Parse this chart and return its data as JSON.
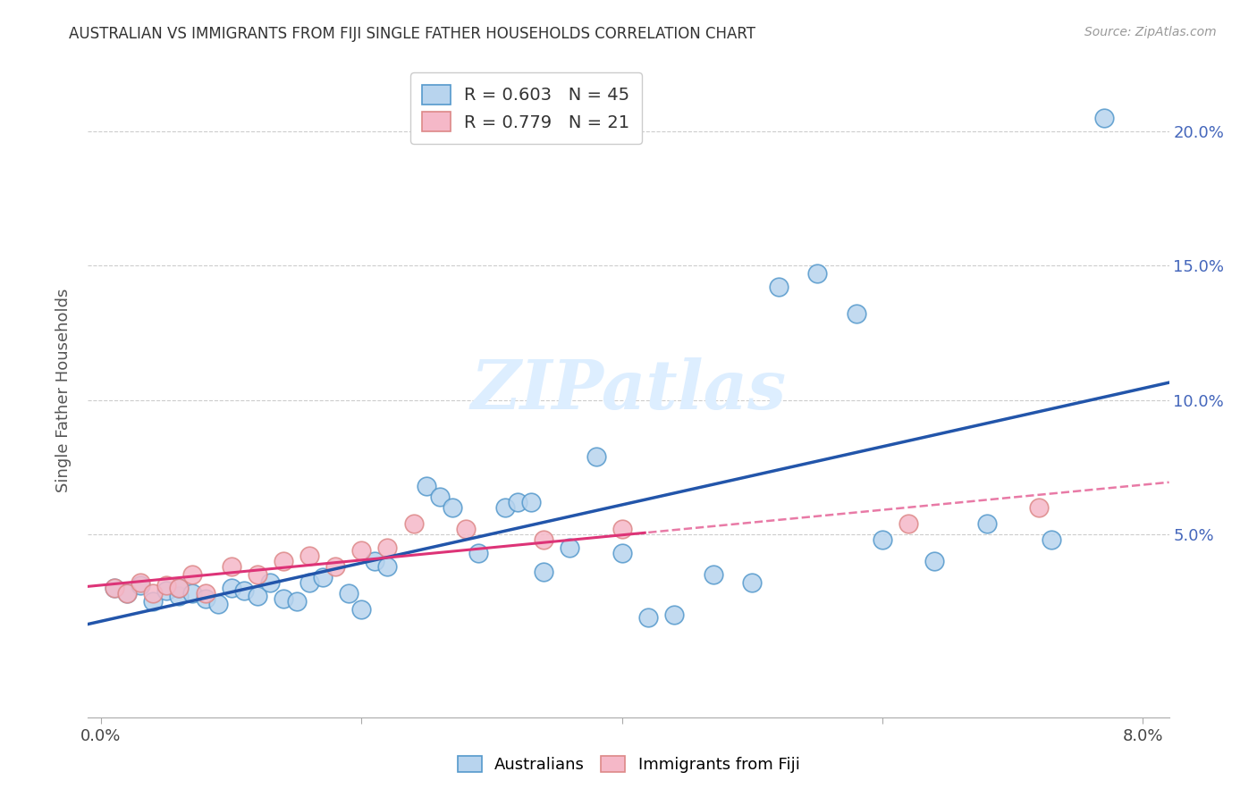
{
  "title": "AUSTRALIAN VS IMMIGRANTS FROM FIJI SINGLE FATHER HOUSEHOLDS CORRELATION CHART",
  "source": "Source: ZipAtlas.com",
  "ylabel": "Single Father Households",
  "legend_label_1": "Australians",
  "legend_label_2": "Immigrants from Fiji",
  "r1": "0.603",
  "n1": "45",
  "r2": "0.779",
  "n2": "21",
  "xlim": [
    -0.001,
    0.082
  ],
  "ylim": [
    -0.018,
    0.225
  ],
  "color_blue_fill": "#b8d4ee",
  "color_blue_edge": "#5599cc",
  "color_pink_fill": "#f5b8c8",
  "color_pink_edge": "#dd8888",
  "color_blue_line": "#2255aa",
  "color_pink_line": "#dd3377",
  "color_grid": "#cccccc",
  "watermark_color": "#ddeeff",
  "aus_x": [
    0.001,
    0.002,
    0.003,
    0.004,
    0.005,
    0.006,
    0.006,
    0.007,
    0.008,
    0.009,
    0.01,
    0.011,
    0.012,
    0.013,
    0.014,
    0.015,
    0.016,
    0.017,
    0.019,
    0.02,
    0.021,
    0.022,
    0.025,
    0.026,
    0.027,
    0.029,
    0.031,
    0.032,
    0.033,
    0.034,
    0.036,
    0.038,
    0.04,
    0.042,
    0.044,
    0.047,
    0.05,
    0.052,
    0.055,
    0.058,
    0.06,
    0.064,
    0.068,
    0.073,
    0.077
  ],
  "aus_y": [
    0.03,
    0.028,
    0.031,
    0.025,
    0.029,
    0.027,
    0.03,
    0.028,
    0.026,
    0.024,
    0.03,
    0.029,
    0.027,
    0.032,
    0.026,
    0.025,
    0.032,
    0.034,
    0.028,
    0.022,
    0.04,
    0.038,
    0.068,
    0.064,
    0.06,
    0.043,
    0.06,
    0.062,
    0.062,
    0.036,
    0.045,
    0.079,
    0.043,
    0.019,
    0.02,
    0.035,
    0.032,
    0.142,
    0.147,
    0.132,
    0.048,
    0.04,
    0.054,
    0.048,
    0.205
  ],
  "fiji_x": [
    0.001,
    0.002,
    0.003,
    0.004,
    0.005,
    0.006,
    0.007,
    0.008,
    0.01,
    0.012,
    0.014,
    0.016,
    0.018,
    0.02,
    0.022,
    0.024,
    0.028,
    0.034,
    0.04,
    0.062,
    0.072
  ],
  "fiji_y": [
    0.03,
    0.028,
    0.032,
    0.028,
    0.031,
    0.03,
    0.035,
    0.028,
    0.038,
    0.035,
    0.04,
    0.042,
    0.038,
    0.044,
    0.045,
    0.054,
    0.052,
    0.048,
    0.052,
    0.054,
    0.06
  ]
}
